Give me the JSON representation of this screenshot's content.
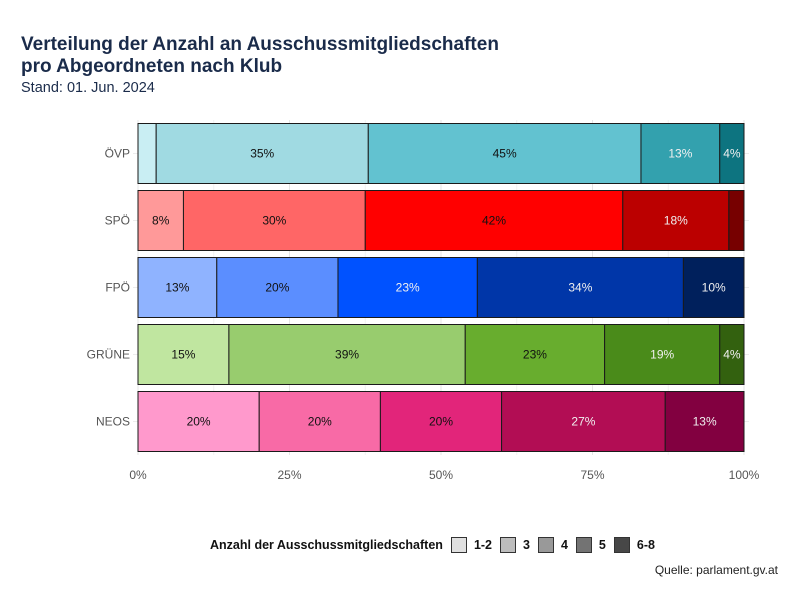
{
  "header": {
    "title_line1": "Verteilung der Anzahl an Ausschussmitgliedschaften",
    "title_line2": "pro Abgeordneten nach Klub",
    "subtitle": "Stand: 01. Jun. 2024"
  },
  "caption": "Quelle: parlament.gv.at",
  "chart_data": {
    "type": "bar",
    "orientation": "horizontal",
    "stacked": "percent",
    "title": "Verteilung der Anzahl an Ausschussmitgliedschaften pro Abgeordneten nach Klub",
    "subtitle": "Stand: 01. Jun. 2024",
    "xlabel": "",
    "ylabel": "",
    "xlim": [
      0,
      100
    ],
    "x_ticks": [
      "0%",
      "25%",
      "50%",
      "75%",
      "100%"
    ],
    "grid": true,
    "legend_position": "bottom",
    "legend_title": "Anzahl der Ausschussmitgliedschaften",
    "legend_entries": [
      "1-2",
      "3",
      "4",
      "5",
      "6-8"
    ],
    "legend_colors": [
      "#e0e0e0",
      "#bdbdbd",
      "#999999",
      "#737373",
      "#474747"
    ],
    "categories": [
      "ÖVP",
      "SPÖ",
      "FPÖ",
      "GRÜNE",
      "NEOS"
    ],
    "series": [
      {
        "name": "1-2",
        "values": [
          3,
          7.5,
          13,
          15,
          20
        ],
        "labels": [
          "",
          "8%",
          "13%",
          "15%",
          "20%"
        ]
      },
      {
        "name": "3",
        "values": [
          35,
          30,
          20,
          39,
          20
        ],
        "labels": [
          "35%",
          "30%",
          "20%",
          "39%",
          "20%"
        ]
      },
      {
        "name": "4",
        "values": [
          45,
          42.5,
          23,
          23,
          20
        ],
        "labels": [
          "45%",
          "42%",
          "23%",
          "23%",
          "20%"
        ]
      },
      {
        "name": "5",
        "values": [
          13,
          17.5,
          34,
          19,
          27
        ],
        "labels": [
          "13%",
          "18%",
          "34%",
          "19%",
          "27%"
        ]
      },
      {
        "name": "6-8",
        "values": [
          4,
          2.5,
          10,
          4,
          13
        ],
        "labels": [
          "4%",
          "",
          "10%",
          "4%",
          "13%"
        ]
      }
    ],
    "colors": {
      "ÖVP": [
        "#c9eef3",
        "#a0dae2",
        "#62c2d0",
        "#33a1ae",
        "#0d7480"
      ],
      "SPÖ": [
        "#ff9999",
        "#ff6666",
        "#ff0000",
        "#bb0000",
        "#770000"
      ],
      "FPÖ": [
        "#8fb3ff",
        "#5b8eff",
        "#0052ff",
        "#0036a8",
        "#00205c"
      ],
      "GRÜNE": [
        "#c0e6a0",
        "#98cc6e",
        "#68ad2e",
        "#4a8b1a",
        "#33610f"
      ],
      "NEOS": [
        "#ff99cc",
        "#f86aa6",
        "#e2257a",
        "#b20d54",
        "#820040"
      ]
    }
  }
}
